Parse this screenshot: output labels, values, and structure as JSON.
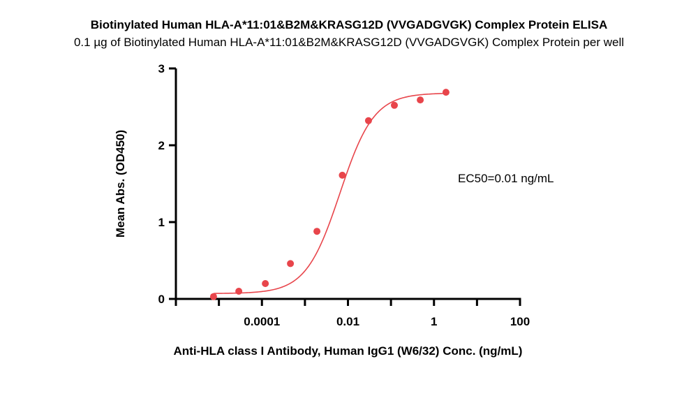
{
  "chart_data": {
    "type": "scatter",
    "title": "Biotinylated Human HLA-A*11:01&B2M&KRASG12D (VVGADGVGK) Complex Protein ELISA",
    "subtitle": "0.1 µg of Biotinylated Human HLA-A*11:01&B2M&KRASG12D (VVGADGVGK) Complex Protein per well",
    "xlabel": "Anti-HLA class I Antibody, Human IgG1 (W6/32) Conc. (ng/mL)",
    "ylabel": "Mean Abs. (OD450)",
    "x_scale": "log",
    "xlim": [
      1e-06,
      100
    ],
    "ylim": [
      0,
      3
    ],
    "x_ticks": [
      {
        "value": 0.0001,
        "label": "0.0001"
      },
      {
        "value": 0.01,
        "label": "0.01"
      },
      {
        "value": 1,
        "label": "1"
      },
      {
        "value": 100,
        "label": "100"
      }
    ],
    "y_ticks": [
      {
        "value": 0,
        "label": "0"
      },
      {
        "value": 1,
        "label": "1"
      },
      {
        "value": 2,
        "label": "2"
      },
      {
        "value": 3,
        "label": "3"
      }
    ],
    "series": [
      {
        "color": "#e8454b",
        "points": [
          {
            "x": 7.5e-06,
            "y": 0.03
          },
          {
            "x": 2.9e-05,
            "y": 0.1
          },
          {
            "x": 0.00012,
            "y": 0.2
          },
          {
            "x": 0.00046,
            "y": 0.46
          },
          {
            "x": 0.0019,
            "y": 0.88
          },
          {
            "x": 0.0074,
            "y": 1.61
          },
          {
            "x": 0.03,
            "y": 2.32
          },
          {
            "x": 0.12,
            "y": 2.52
          },
          {
            "x": 0.48,
            "y": 2.59
          },
          {
            "x": 1.9,
            "y": 2.69
          }
        ]
      }
    ],
    "fit_curve": {
      "type": "4PL",
      "bottom": 0.07,
      "top": 2.68,
      "ec50": 0.0065,
      "hill": 1.1
    },
    "annotation": "EC50=0.01 ng/mL",
    "grid": false,
    "legend": "none"
  }
}
